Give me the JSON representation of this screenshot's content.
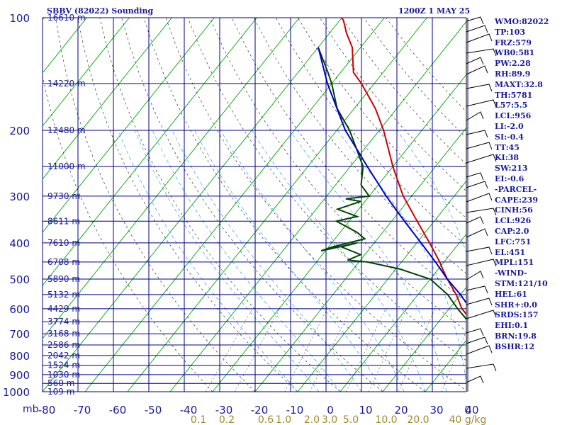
{
  "header": {
    "station": "SBBV (82022) Sounding",
    "time": "1200Z  1 MAY 25"
  },
  "indices": [
    "WMO:82022",
    "TP:103",
    "FRZ:579",
    "WB0:581",
    "PW:2.28",
    "RH:89.9",
    "MAXT:32.8",
    "TH:5781",
    "L57:5.5",
    "LCL:956",
    "LI:-2.0",
    "SI:-0.4",
    "TT:45",
    "KI:38",
    "SW:213",
    "EI:-0.6",
    "-PARCEL-",
    "CAPE:239",
    "CINH:56",
    "LCL:926",
    "CAP:2.0",
    "LFC:751",
    "EL:451",
    "MPL:151",
    "-WIND-",
    "STM:121/10",
    "HEL:61",
    "SHR+:0.0",
    "SRDS:157",
    "EHI:0.1",
    "BRN:19.8",
    "BSHR:12"
  ],
  "chart_data": {
    "type": "line",
    "title": "SBBV (82022) Sounding",
    "xlabel": "",
    "ylabel": "mb",
    "x_range": [
      -80,
      0
    ],
    "y_range": [
      1000,
      100
    ],
    "y_scale": "log",
    "pressure_ticks": [
      "100",
      "200",
      "300",
      "400",
      "500",
      "600",
      "700",
      "800",
      "900",
      "1000"
    ],
    "pressure_tick_values": [
      100,
      200,
      300,
      400,
      500,
      600,
      700,
      800,
      900,
      1000
    ],
    "temp_ticks": [
      "-80",
      "-70",
      "-60",
      "-50",
      "-40",
      "-30",
      "-20",
      "-10",
      "0",
      "10",
      "20",
      "30",
      "40",
      "0"
    ],
    "temp_tick_values": [
      -80,
      -70,
      -60,
      -50,
      -40,
      -30,
      -20,
      -10,
      0,
      10,
      20,
      30,
      40,
      0
    ],
    "mixing_ratio_ticks": [
      "0.1",
      "0.2",
      "0.6",
      "1.0",
      "2.0",
      "3.0",
      "5.0",
      "10.0",
      "20.0",
      "40 g/kg"
    ],
    "mixing_ratio_tick_x": [
      -38,
      -30,
      -19,
      -14,
      -6,
      -1,
      5,
      15,
      24,
      38
    ],
    "height_labels": [
      {
        "p": 100,
        "label": "16610 m"
      },
      {
        "p": 150,
        "label": "14220 m"
      },
      {
        "p": 200,
        "label": "12480 m"
      },
      {
        "p": 250,
        "label": "11000 m"
      },
      {
        "p": 300,
        "label": "9730 m"
      },
      {
        "p": 350,
        "label": "8611 m"
      },
      {
        "p": 400,
        "label": "7610 m"
      },
      {
        "p": 450,
        "label": "6708 m"
      },
      {
        "p": 500,
        "label": "5890 m"
      },
      {
        "p": 550,
        "label": "5132 m"
      },
      {
        "p": 600,
        "label": "4429 m"
      },
      {
        "p": 650,
        "label": "3774 m"
      },
      {
        "p": 700,
        "label": "3168 m"
      },
      {
        "p": 750,
        "label": "2586 m"
      },
      {
        "p": 800,
        "label": "2042 m"
      },
      {
        "p": 850,
        "label": "1524 m"
      },
      {
        "p": 900,
        "label": "1030 m"
      },
      {
        "p": 950,
        "label": "560 m"
      },
      {
        "p": 1000,
        "label": "109 m"
      }
    ],
    "series": [
      {
        "name": "",
        "role": "temperature",
        "color": "#cc0000",
        "points": [
          [
            100,
            -80
          ],
          [
            102,
            -79
          ],
          [
            110,
            -76
          ],
          [
            120,
            -72
          ],
          [
            140,
            -67
          ],
          [
            150,
            -63
          ],
          [
            175,
            -55
          ],
          [
            200,
            -49
          ],
          [
            250,
            -40
          ],
          [
            300,
            -32
          ],
          [
            350,
            -24
          ],
          [
            400,
            -17
          ],
          [
            450,
            -11
          ],
          [
            470,
            -9
          ],
          [
            500,
            -6
          ],
          [
            550,
            -1
          ],
          [
            600,
            3
          ],
          [
            650,
            8
          ],
          [
            700,
            12
          ],
          [
            750,
            15
          ],
          [
            800,
            18
          ],
          [
            850,
            21
          ],
          [
            880,
            23
          ],
          [
            900,
            22
          ],
          [
            940,
            23
          ],
          [
            970,
            25
          ],
          [
            1000,
            26
          ]
        ]
      },
      {
        "name": "",
        "role": "dewpoint",
        "color": "#004400",
        "points": [
          [
            120,
            -80
          ],
          [
            140,
            -73
          ],
          [
            150,
            -70
          ],
          [
            175,
            -64
          ],
          [
            200,
            -57
          ],
          [
            250,
            -47
          ],
          [
            280,
            -44
          ],
          [
            300,
            -40
          ],
          [
            305,
            -45
          ],
          [
            310,
            -41
          ],
          [
            325,
            -45
          ],
          [
            340,
            -39
          ],
          [
            350,
            -43
          ],
          [
            375,
            -36
          ],
          [
            390,
            -33
          ],
          [
            410,
            -39
          ],
          [
            420,
            -41
          ],
          [
            400,
            -34
          ],
          [
            410,
            -37
          ],
          [
            430,
            -31
          ],
          [
            445,
            -33
          ],
          [
            450,
            -28
          ],
          [
            470,
            -19
          ],
          [
            490,
            -13
          ],
          [
            500,
            -10
          ],
          [
            550,
            -3
          ],
          [
            600,
            2
          ],
          [
            650,
            7
          ],
          [
            700,
            11
          ],
          [
            750,
            13
          ],
          [
            800,
            14
          ],
          [
            850,
            17
          ],
          [
            880,
            17
          ],
          [
            890,
            18
          ],
          [
            900,
            19
          ],
          [
            930,
            20
          ],
          [
            960,
            20
          ],
          [
            1000,
            22
          ]
        ]
      },
      {
        "name": "",
        "role": "parcel",
        "color": "#0000cc",
        "points": [
          [
            120,
            -80
          ],
          [
            150,
            -71
          ],
          [
            200,
            -58
          ],
          [
            250,
            -46
          ],
          [
            300,
            -36
          ],
          [
            350,
            -27
          ],
          [
            400,
            -19
          ],
          [
            450,
            -12
          ],
          [
            500,
            -6
          ],
          [
            550,
            0
          ],
          [
            600,
            5
          ],
          [
            650,
            10
          ],
          [
            700,
            14
          ],
          [
            750,
            17
          ],
          [
            800,
            19
          ],
          [
            850,
            21
          ],
          [
            900,
            22
          ],
          [
            950,
            23
          ],
          [
            1000,
            25
          ]
        ]
      }
    ],
    "grid": true,
    "legend": "none"
  }
}
